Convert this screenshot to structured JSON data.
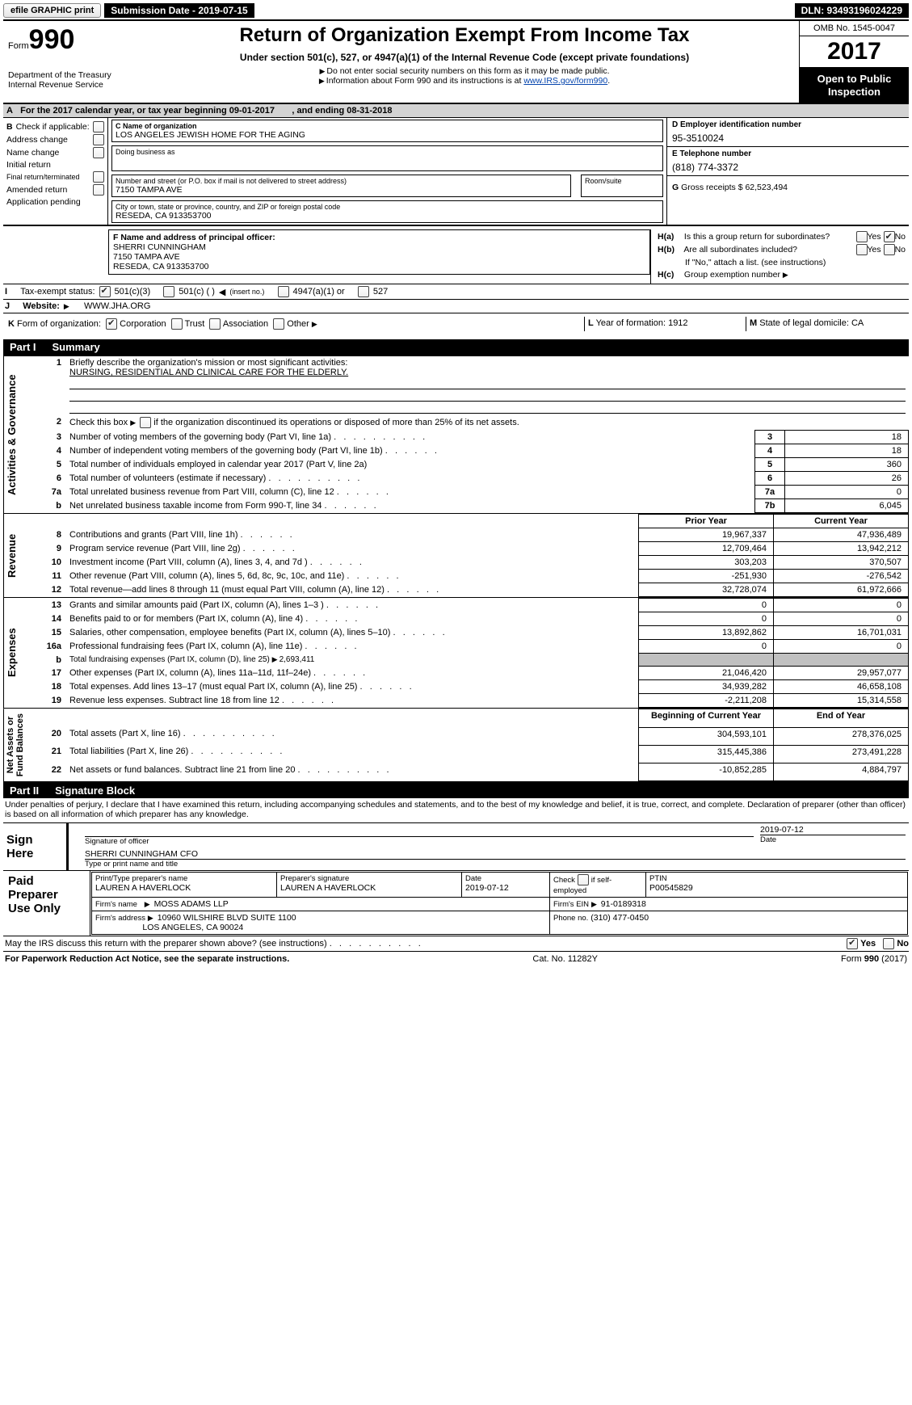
{
  "topbar": {
    "efile_label": "efile GRAPHIC print",
    "submission_label": "Submission Date - 2019-07-15",
    "dln_label": "DLN: 93493196024229"
  },
  "header": {
    "form_word": "Form",
    "form_num": "990",
    "dept1": "Department of the Treasury",
    "dept2": "Internal Revenue Service",
    "title": "Return of Organization Exempt From Income Tax",
    "subtitle": "Under section 501(c), 527, or 4947(a)(1) of the Internal Revenue Code (except private foundations)",
    "note1": "Do not enter social security numbers on this form as it may be made public.",
    "note2_pre": "Information about Form 990 and its instructions is at ",
    "note2_link": "www.IRS.gov/form990",
    "omb": "OMB No. 1545-0047",
    "year": "2017",
    "open1": "Open to Public",
    "open2": "Inspection"
  },
  "A": {
    "label_pre": "A",
    "text": "For the 2017 calendar year, or tax year beginning 09-01-2017",
    "text2": ", and ending 08-31-2018"
  },
  "B": {
    "title": "Check if applicable:",
    "items": [
      "Address change",
      "Name change",
      "Initial return",
      "Final return/terminated",
      "Amended return",
      "Application pending"
    ]
  },
  "C": {
    "name_lbl": "C Name of organization",
    "name": "LOS ANGELES JEWISH HOME FOR THE AGING",
    "dba_lbl": "Doing business as",
    "dba": "",
    "addr_lbl": "Number and street (or P.O. box if mail is not delivered to street address)",
    "addr": "7150 TAMPA AVE",
    "room_lbl": "Room/suite",
    "room": "",
    "city_lbl": "City or town, state or province, country, and ZIP or foreign postal code",
    "city": "RESEDA, CA   913353700"
  },
  "D": {
    "lbl": "D Employer identification number",
    "val": "95-3510024"
  },
  "E": {
    "lbl": "E Telephone number",
    "val": "(818) 774-3372"
  },
  "G": {
    "lbl": "G",
    "text": "Gross receipts $ 62,523,494"
  },
  "F": {
    "lbl": "F  Name and address of principal officer:",
    "l1": "SHERRI CUNNINGHAM",
    "l2": "7150 TAMPA AVE",
    "l3": "RESEDA, CA   913353700"
  },
  "I": {
    "lbl": "I",
    "text": "Tax-exempt status:",
    "o1": "501(c)(3)",
    "o2": "501(c) (   )",
    "o2s": "(insert no.)",
    "o3": "4947(a)(1) or",
    "o4": "527"
  },
  "J": {
    "lbl": "J",
    "text": "Website:",
    "val": "WWW.JHA.ORG"
  },
  "H": {
    "a_lbl": "H(a)",
    "a_text": "Is this a group return for subordinates?",
    "b_lbl": "H(b)",
    "b_text": "Are all subordinates included?",
    "b_note": "If \"No,\" attach a list. (see instructions)",
    "c_lbl": "H(c)",
    "c_text": "Group exemption number",
    "yes": "Yes",
    "no": "No"
  },
  "K": {
    "lbl": "K",
    "text": "Form of organization:",
    "o1": "Corporation",
    "o2": "Trust",
    "o3": "Association",
    "o4": "Other"
  },
  "L": {
    "lbl": "L",
    "text": "Year of formation: 1912"
  },
  "M": {
    "lbl": "M",
    "text": "State of legal domicile: CA"
  },
  "part1": {
    "pt": "Part I",
    "title": "Summary"
  },
  "gov": {
    "vlabel": "Activities & Governance",
    "l1a": "Briefly describe the organization's mission or most significant activities:",
    "l1b": "NURSING, RESIDENTIAL AND CLINICAL CARE FOR THE ELDERLY.",
    "l2": "Check this box",
    "l2b": "if the organization discontinued its operations or disposed of more than 25% of its net assets.",
    "l3": "Number of voting members of the governing body (Part VI, line 1a)",
    "v3": "18",
    "l4": "Number of independent voting members of the governing body (Part VI, line 1b)",
    "v4": "18",
    "l5": "Total number of individuals employed in calendar year 2017 (Part V, line 2a)",
    "v5": "360",
    "l6": "Total number of volunteers (estimate if necessary)",
    "v6": "26",
    "l7a": "Total unrelated business revenue from Part VIII, column (C), line 12",
    "v7a": "0",
    "l7b": "Net unrelated business taxable income from Form 990-T, line 34",
    "v7b": "6,045"
  },
  "rev": {
    "vlabel": "Revenue",
    "pyh": "Prior Year",
    "cyh": "Current Year",
    "rows": [
      {
        "n": "8",
        "d": "Contributions and grants (Part VIII, line 1h)",
        "py": "19,967,337",
        "cy": "47,936,489"
      },
      {
        "n": "9",
        "d": "Program service revenue (Part VIII, line 2g)",
        "py": "12,709,464",
        "cy": "13,942,212"
      },
      {
        "n": "10",
        "d": "Investment income (Part VIII, column (A), lines 3, 4, and 7d )",
        "py": "303,203",
        "cy": "370,507"
      },
      {
        "n": "11",
        "d": "Other revenue (Part VIII, column (A), lines 5, 6d, 8c, 9c, 10c, and 11e)",
        "py": "-251,930",
        "cy": "-276,542"
      },
      {
        "n": "12",
        "d": "Total revenue—add lines 8 through 11 (must equal Part VIII, column (A), line 12)",
        "py": "32,728,074",
        "cy": "61,972,666"
      }
    ]
  },
  "exp": {
    "vlabel": "Expenses",
    "rows": [
      {
        "n": "13",
        "d": "Grants and similar amounts paid (Part IX, column (A), lines 1–3 )",
        "py": "0",
        "cy": "0"
      },
      {
        "n": "14",
        "d": "Benefits paid to or for members (Part IX, column (A), line 4)",
        "py": "0",
        "cy": "0"
      },
      {
        "n": "15",
        "d": "Salaries, other compensation, employee benefits (Part IX, column (A), lines 5–10)",
        "py": "13,892,862",
        "cy": "16,701,031"
      },
      {
        "n": "16a",
        "d": "Professional fundraising fees (Part IX, column (A), line 11e)",
        "py": "0",
        "cy": "0"
      }
    ],
    "l16b_pre": "b",
    "l16b": "Total fundraising expenses (Part IX, column (D), line 25)",
    "l16b_val": "2,693,411",
    "rows2": [
      {
        "n": "17",
        "d": "Other expenses (Part IX, column (A), lines 11a–11d, 11f–24e)",
        "py": "21,046,420",
        "cy": "29,957,077"
      },
      {
        "n": "18",
        "d": "Total expenses. Add lines 13–17 (must equal Part IX, column (A), line 25)",
        "py": "34,939,282",
        "cy": "46,658,108"
      },
      {
        "n": "19",
        "d": "Revenue less expenses. Subtract line 18 from line 12",
        "py": "-2,211,208",
        "cy": "15,314,558"
      }
    ]
  },
  "na": {
    "vlabel": "Net Assets or\nFund Balances",
    "byh": "Beginning of Current Year",
    "eyh": "End of Year",
    "rows": [
      {
        "n": "20",
        "d": "Total assets (Part X, line 16)",
        "py": "304,593,101",
        "cy": "278,376,025"
      },
      {
        "n": "21",
        "d": "Total liabilities (Part X, line 26)",
        "py": "315,445,386",
        "cy": "273,491,228"
      },
      {
        "n": "22",
        "d": "Net assets or fund balances. Subtract line 21 from line 20",
        "py": "-10,852,285",
        "cy": "4,884,797"
      }
    ]
  },
  "part2": {
    "pt": "Part II",
    "title": "Signature Block"
  },
  "sig": {
    "decl": "Under penalties of perjury, I declare that I have examined this return, including accompanying schedules and statements, and to the best of my knowledge and belief, it is true, correct, and complete. Declaration of preparer (other than officer) is based on all information of which preparer has any knowledge.",
    "signhere": "Sign Here",
    "sigoff": "Signature of officer",
    "date": "Date",
    "datev": "2019-07-12",
    "name": "SHERRI CUNNINGHAM  CFO",
    "namelab": "Type or print name and title"
  },
  "prep": {
    "title1": "Paid",
    "title2": "Preparer",
    "title3": "Use Only",
    "c1": "Print/Type preparer's name",
    "c1v": "LAUREN A HAVERLOCK",
    "c2": "Preparer's signature",
    "c2v": "LAUREN A HAVERLOCK",
    "c3": "Date",
    "c3v": "2019-07-12",
    "c4a": "Check",
    "c4b": "if self-employed",
    "c5": "PTIN",
    "c5v": "P00545829",
    "firmname_lbl": "Firm's name",
    "firmname": "MOSS ADAMS LLP",
    "firmaddr_lbl": "Firm's address",
    "firmaddr1": "10960 WILSHIRE BLVD SUITE 1100",
    "firmaddr2": "LOS ANGELES, CA   90024",
    "ein_lbl": "Firm's EIN",
    "ein": "91-0189318",
    "phone_lbl": "Phone no.",
    "phone": "(310) 477-0450"
  },
  "discuss": {
    "q": "May the IRS discuss this return with the preparer shown above? (see instructions)",
    "yes": "Yes",
    "no": "No"
  },
  "footer": {
    "l": "For Paperwork Reduction Act Notice, see the separate instructions.",
    "c": "Cat. No. 11282Y",
    "r_pre": "Form ",
    "r_b": "990",
    "r_suf": " (2017)"
  },
  "style": {
    "primary_text": "#000000",
    "bg": "#ffffff",
    "gray_fill": "#c0c0c0",
    "link": "#0645ad"
  }
}
